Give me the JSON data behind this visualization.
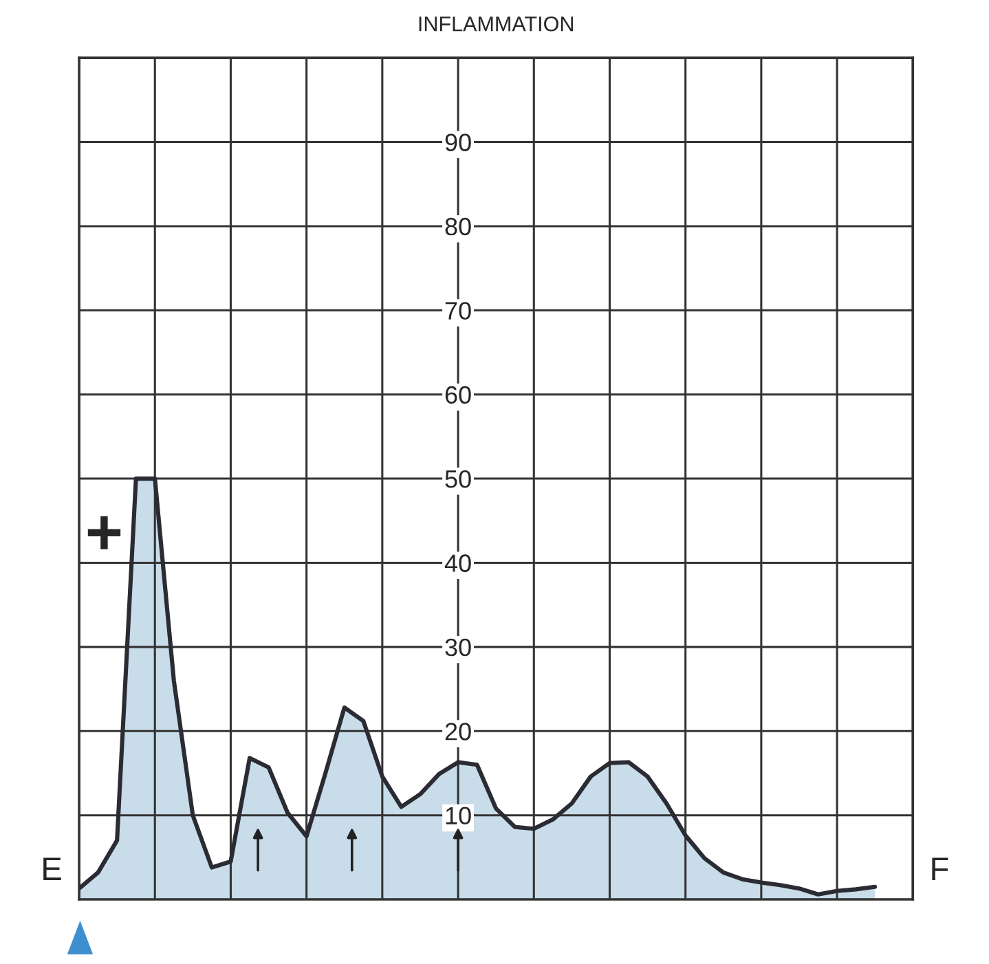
{
  "chart_data": {
    "type": "area",
    "title": "INFLAMMATION",
    "categories": [
      null,
      null,
      null,
      null,
      null,
      null,
      null,
      null,
      null,
      null,
      null,
      null,
      null,
      null,
      null,
      null,
      null,
      null,
      null,
      null,
      null,
      null,
      null,
      null,
      null,
      null,
      null,
      null,
      null,
      null,
      null,
      null,
      null,
      null,
      null,
      null,
      null,
      null,
      null,
      null,
      null,
      null,
      null
    ],
    "series": [
      {
        "color": "#c8dcea",
        "values": [
          1.3,
          3.2,
          7,
          50,
          50,
          26,
          10,
          3.8,
          4.5,
          16.8,
          15.7,
          10.3,
          7.5,
          15,
          22.8,
          21.2,
          14.6,
          11,
          12.5,
          14.9,
          16.3,
          16,
          10.8,
          8.6,
          8.4,
          9.5,
          11.4,
          14.6,
          16.2,
          16.3,
          14.6,
          11.4,
          7.6,
          4.9,
          3.2,
          2.4,
          2,
          1.7,
          1.3,
          0.6,
          1,
          1.2,
          1.5
        ]
      }
    ],
    "ylim": [
      0,
      100
    ],
    "yticks": [
      10,
      20,
      30,
      40,
      50,
      60,
      70,
      80,
      90
    ],
    "grid": true,
    "annotations": [
      "E",
      "F",
      "+"
    ]
  }
}
